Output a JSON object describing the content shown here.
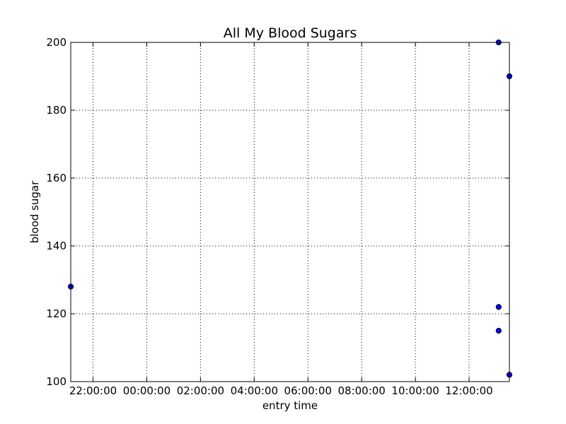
{
  "chart_data": {
    "type": "scatter",
    "title": "All My Blood Sugars",
    "xlabel": "entry time",
    "ylabel": "blood sugar",
    "x_ticks": [
      "22:00:00",
      "00:00:00",
      "02:00:00",
      "04:00:00",
      "06:00:00",
      "08:00:00",
      "10:00:00",
      "12:00:00"
    ],
    "x_tick_hours": [
      22,
      24,
      26,
      28,
      30,
      32,
      34,
      36
    ],
    "xlim_hours": [
      21.17,
      37.5
    ],
    "ylim": [
      100,
      200
    ],
    "y_ticks": [
      100,
      120,
      140,
      160,
      180,
      200
    ],
    "grid": true,
    "marker_color": "#0000ff",
    "series": [
      {
        "points": [
          {
            "t": 21.17,
            "y": 128
          },
          {
            "t": 37.1,
            "y": 200
          },
          {
            "t": 37.1,
            "y": 122
          },
          {
            "t": 37.1,
            "y": 115
          },
          {
            "t": 37.5,
            "y": 190
          },
          {
            "t": 37.5,
            "y": 102
          }
        ]
      }
    ]
  }
}
